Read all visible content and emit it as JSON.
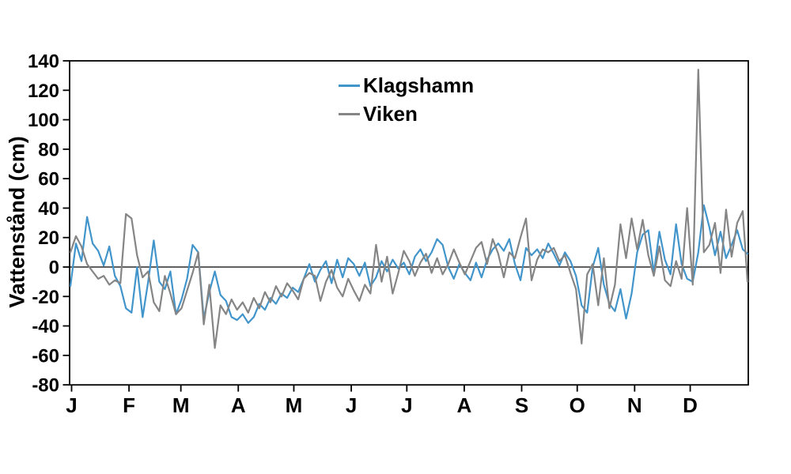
{
  "page": {
    "background": "#ffffff"
  },
  "chart_data": {
    "type": "line",
    "title": "",
    "xlabel": "",
    "ylabel": "Vattenstånd (cm)",
    "ylim": [
      -80,
      140
    ],
    "yticks": [
      140,
      120,
      100,
      80,
      60,
      40,
      20,
      0,
      -20,
      -40,
      -60,
      -80
    ],
    "x_month_labels": [
      "J",
      "F",
      "M",
      "A",
      "M",
      "J",
      "J",
      "A",
      "S",
      "O",
      "N",
      "D"
    ],
    "x_month_start_days": [
      0,
      31,
      59,
      90,
      120,
      151,
      181,
      212,
      243,
      273,
      304,
      334
    ],
    "x_total_days": 366,
    "days_per_point": 3,
    "grid": false,
    "zero_line": true,
    "legend_position": "top-center-inside",
    "axis_color": "#000000",
    "series": [
      {
        "name": "Klagshamn",
        "color": "#4195CB",
        "values": [
          -13,
          16,
          4,
          34,
          16,
          11,
          1,
          14,
          -6,
          -13,
          -28,
          -31,
          0,
          -34,
          -10,
          18,
          -10,
          -15,
          -3,
          -32,
          -22,
          -8,
          15,
          10,
          -35,
          -17,
          -3,
          -19,
          -23,
          -34,
          -36,
          -32,
          -38,
          -34,
          -25,
          -29,
          -21,
          -25,
          -18,
          -21,
          -14,
          -17,
          -8,
          2,
          -10,
          -2,
          4,
          -11,
          5,
          -7,
          6,
          2,
          -6,
          3,
          -13,
          -7,
          4,
          -3,
          5,
          -1,
          3,
          -5,
          7,
          12,
          4,
          10,
          19,
          15,
          0,
          -8,
          2,
          -4,
          -9,
          3,
          -7,
          5,
          12,
          16,
          11,
          19,
          2,
          -9,
          13,
          8,
          12,
          6,
          16,
          9,
          1,
          10,
          4,
          -6,
          -26,
          -31,
          0,
          13,
          -12,
          -25,
          -30,
          -15,
          -35,
          -18,
          10,
          22,
          25,
          -4,
          24,
          5,
          -5,
          29,
          2,
          -8,
          -10,
          10,
          42,
          27,
          8,
          24,
          6,
          15,
          25,
          12,
          9
        ]
      },
      {
        "name": "Viken",
        "color": "#858585",
        "values": [
          10,
          21,
          14,
          2,
          -3,
          -8,
          -6,
          -12,
          -9,
          -11,
          36,
          33,
          8,
          -7,
          -3,
          -24,
          -30,
          -6,
          -18,
          -32,
          -28,
          -16,
          -4,
          10,
          -39,
          -12,
          -55,
          -26,
          -32,
          -22,
          -29,
          -24,
          -31,
          -21,
          -28,
          -17,
          -24,
          -13,
          -20,
          -11,
          -16,
          -22,
          -8,
          -4,
          -6,
          -23,
          -10,
          -2,
          -14,
          -20,
          -8,
          -16,
          -23,
          -12,
          -18,
          15,
          -10,
          7,
          -18,
          -4,
          11,
          4,
          -6,
          3,
          9,
          -4,
          6,
          -5,
          2,
          12,
          3,
          -5,
          4,
          13,
          17,
          2,
          19,
          9,
          -7,
          10,
          6,
          20,
          33,
          -9,
          5,
          12,
          10,
          13,
          4,
          8,
          -4,
          -15,
          -52,
          -5,
          2,
          -26,
          6,
          -28,
          -12,
          29,
          6,
          33,
          12,
          32,
          8,
          -6,
          14,
          -9,
          -13,
          4,
          -8,
          40,
          -12,
          134,
          10,
          15,
          30,
          -4,
          39,
          7,
          30,
          38,
          -10
        ]
      }
    ]
  }
}
